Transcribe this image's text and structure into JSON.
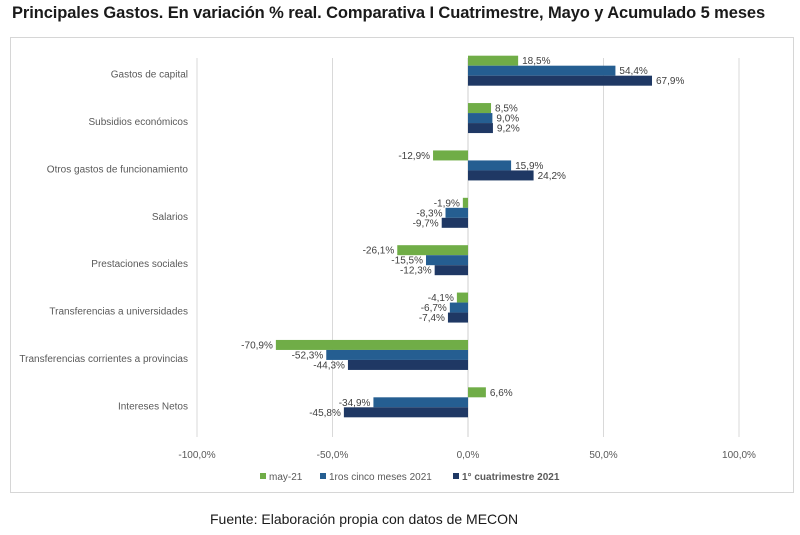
{
  "title": "Principales Gastos. En variación % real. Comparativa I Cuatrimestre, Mayo y Acumulado 5 meses",
  "source": "Fuente: Elaboración propia con datos de MECON",
  "chart_data": {
    "type": "bar",
    "orientation": "horizontal",
    "title": "Principales Gastos. En variación % real. Comparativa I Cuatrimestre, Mayo y Acumulado 5 meses",
    "xlabel": "",
    "ylabel": "",
    "xlim": [
      -100,
      100
    ],
    "x_ticks": [
      -100,
      -50,
      0,
      50,
      100
    ],
    "x_tick_labels": [
      "-100,0%",
      "-50,0%",
      "0,0%",
      "50,0%",
      "100,0%"
    ],
    "grid": "vertical",
    "legend_position": "bottom",
    "categories": [
      "Gastos de capital",
      "Subsidios económicos",
      "Otros gastos de funcionamiento",
      "Salarios",
      "Prestaciones sociales",
      "Transferencias a universidades",
      "Transferencias corrientes a provincias",
      "Intereses Netos"
    ],
    "series": [
      {
        "name": "may-21",
        "color": "#70ad47",
        "bold": false,
        "values": [
          18.5,
          8.5,
          -12.9,
          -1.9,
          -26.1,
          -4.1,
          -70.9,
          6.6
        ],
        "labels": [
          "18,5%",
          "8,5%",
          "-12,9%",
          "-1,9%",
          "-26,1%",
          "-4,1%",
          "-70,9%",
          "6,6%"
        ]
      },
      {
        "name": "1ros cinco meses 2021",
        "color": "#255e91",
        "bold": false,
        "values": [
          54.4,
          9.0,
          15.9,
          -8.3,
          -15.5,
          -6.7,
          -52.3,
          -34.9
        ],
        "labels": [
          "54,4%",
          "9,0%",
          "15,9%",
          "-8,3%",
          "-15,5%",
          "-6,7%",
          "-52,3%",
          "-34,9%"
        ]
      },
      {
        "name": "1° cuatrimestre 2021",
        "color": "#1f3864",
        "bold": true,
        "values": [
          67.9,
          9.2,
          24.2,
          -9.7,
          -12.3,
          -7.4,
          -44.3,
          -45.8
        ],
        "labels": [
          "67,9%",
          "9,2%",
          "24,2%",
          "-9,7%",
          "-12,3%",
          "-7,4%",
          "-44,3%",
          "-45,8%"
        ]
      }
    ]
  }
}
